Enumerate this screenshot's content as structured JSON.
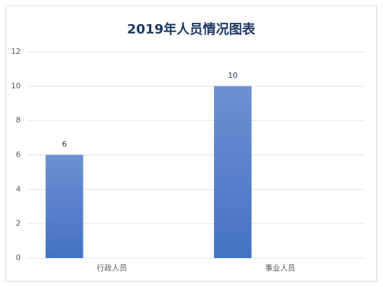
{
  "chart_data": {
    "type": "bar",
    "title": "2019年人员情况图表",
    "categories": [
      "行政人员",
      "事业人员"
    ],
    "values": [
      6,
      10
    ],
    "color": "#4472c4",
    "ylim": [
      0,
      12
    ],
    "yticks": [
      0,
      2,
      4,
      6,
      8,
      10,
      12
    ],
    "grid": true,
    "data_labels": true
  }
}
